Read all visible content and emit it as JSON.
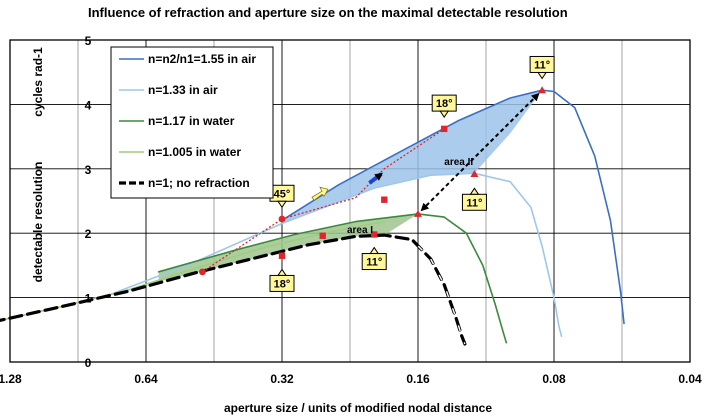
{
  "chart_data": {
    "type": "line",
    "title": "Influence of refraction and aperture size on the maximal detectable resolution",
    "xlabel": "aperture size / units of modified nodal distance",
    "ylabel_left": "detectable resolution",
    "ylabel_right": "cycles rad-1",
    "x_scale": "log2-reversed",
    "xlim": [
      1.28,
      0.04
    ],
    "ylim": [
      0,
      5
    ],
    "x_ticks": [
      "1.28",
      "0.64",
      "0.32",
      "0.16",
      "0.08",
      "0.04"
    ],
    "x_tick_values": [
      1.28,
      0.64,
      0.32,
      0.16,
      0.08,
      0.04
    ],
    "y_ticks": [
      "0",
      "1",
      "2",
      "3",
      "4",
      "5"
    ],
    "y_tick_values": [
      0,
      1,
      2,
      3,
      4,
      5
    ],
    "grid": true,
    "series": [
      {
        "name": "n=n2/n1=1.55 in air",
        "color": "#3a6fc4",
        "dash": "solid",
        "width": 1.6,
        "x": [
          0.32,
          0.24,
          0.18,
          0.13,
          0.1,
          0.085,
          0.08,
          0.072,
          0.065,
          0.06,
          0.057,
          0.056
        ],
        "y": [
          2.2,
          2.75,
          3.22,
          3.75,
          4.1,
          4.22,
          4.2,
          3.95,
          3.2,
          2.2,
          1.1,
          0.6
        ]
      },
      {
        "name": "n=1.33 in air",
        "color": "#9ec7ea",
        "dash": "solid",
        "width": 1.6,
        "x": [
          0.8,
          0.5,
          0.32,
          0.2,
          0.15,
          0.12,
          0.1,
          0.09,
          0.085,
          0.08,
          0.078,
          0.077
        ],
        "y": [
          1.0,
          1.55,
          2.15,
          2.7,
          2.9,
          2.93,
          2.8,
          2.4,
          1.8,
          1.0,
          0.55,
          0.4
        ]
      },
      {
        "name": "n=1.17   in water",
        "color": "#3b8a3b",
        "dash": "solid",
        "width": 1.6,
        "x": [
          0.6,
          0.4,
          0.3,
          0.22,
          0.16,
          0.14,
          0.125,
          0.115,
          0.108,
          0.104,
          0.102
        ],
        "y": [
          1.4,
          1.75,
          1.98,
          2.18,
          2.3,
          2.25,
          2.0,
          1.5,
          0.9,
          0.5,
          0.3
        ]
      },
      {
        "name": "n=1.005 in water",
        "color": "#9ccf7c",
        "dash": "solid",
        "width": 1.6,
        "x": [
          1.4,
          1.0,
          0.7,
          0.5,
          0.35,
          0.25,
          0.19
        ],
        "y": [
          0.62,
          0.85,
          1.12,
          1.45,
          1.78,
          2.02,
          2.18
        ]
      },
      {
        "name": "n=1; no refraction",
        "color": "#000000",
        "dash": "dashed",
        "width": 3.2,
        "x": [
          1.4,
          1.0,
          0.7,
          0.5,
          0.35,
          0.28,
          0.22,
          0.19,
          0.165,
          0.15,
          0.14,
          0.132,
          0.128,
          0.126
        ],
        "y": [
          0.62,
          0.85,
          1.1,
          1.38,
          1.65,
          1.82,
          1.95,
          1.97,
          1.9,
          1.6,
          1.2,
          0.7,
          0.4,
          0.28
        ]
      }
    ],
    "annotations": {
      "dotted_red": {
        "x": [
          0.48,
          0.32,
          0.22,
          0.19,
          0.14
        ],
        "y": [
          1.4,
          2.22,
          2.55,
          3.0,
          3.62
        ]
      },
      "red_markers": [
        {
          "x": 0.48,
          "y": 1.4,
          "shape": "circle"
        },
        {
          "x": 0.32,
          "y": 2.22,
          "shape": "circle"
        },
        {
          "x": 0.32,
          "y": 1.65,
          "shape": "square"
        },
        {
          "x": 0.26,
          "y": 1.96,
          "shape": "square"
        },
        {
          "x": 0.2,
          "y": 1.98,
          "shape": "square"
        },
        {
          "x": 0.19,
          "y": 2.52,
          "shape": "square"
        },
        {
          "x": 0.14,
          "y": 3.62,
          "shape": "square"
        },
        {
          "x": 0.16,
          "y": 2.3,
          "shape": "triangle"
        },
        {
          "x": 0.12,
          "y": 2.92,
          "shape": "triangle"
        },
        {
          "x": 0.085,
          "y": 4.22,
          "shape": "triangle"
        }
      ],
      "double_arrow": {
        "from": [
          0.085,
          4.22
        ],
        "to": [
          0.16,
          2.3
        ]
      },
      "callouts": [
        {
          "text": "45°",
          "x": 0.32,
          "y": 2.62,
          "pointer": "down"
        },
        {
          "text": "18°",
          "x": 0.32,
          "y": 1.22,
          "pointer": "up"
        },
        {
          "text": "18°",
          "x": 0.14,
          "y": 4.02,
          "pointer": "down"
        },
        {
          "text": "11°",
          "x": 0.085,
          "y": 4.62,
          "pointer": "down"
        },
        {
          "text": "11°",
          "x": 0.12,
          "y": 2.48,
          "pointer": "up"
        },
        {
          "text": "11°",
          "x": 0.2,
          "y": 1.56,
          "pointer": "up"
        }
      ],
      "area_labels": [
        {
          "text": "area II",
          "x": 0.13,
          "y": 3.06
        },
        {
          "text": "area I",
          "x": 0.215,
          "y": 2.0
        }
      ]
    }
  }
}
